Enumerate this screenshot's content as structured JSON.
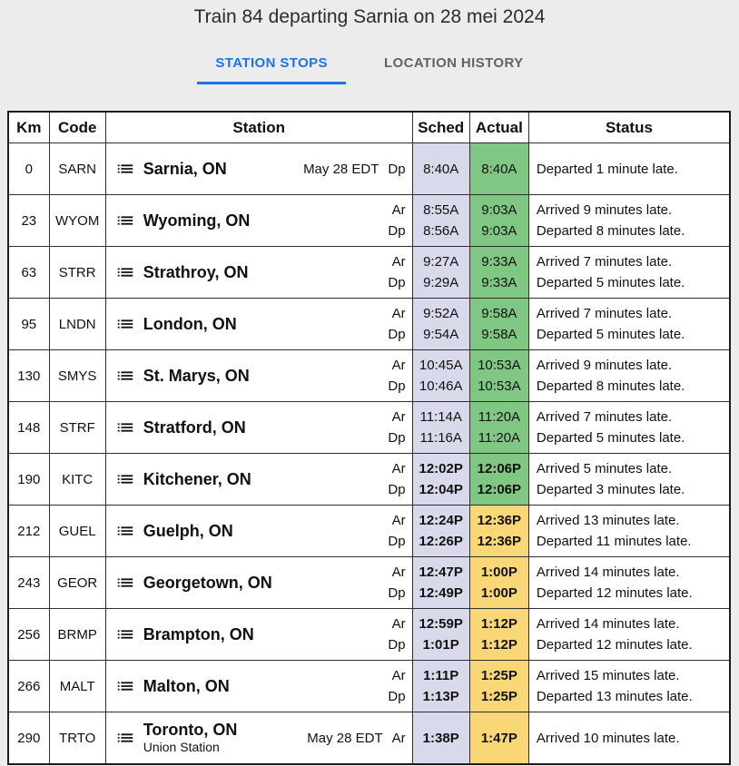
{
  "header": {
    "title": "Train 84 departing Sarnia on 28 mei 2024",
    "tabs": [
      {
        "label": "STATION STOPS",
        "active": true
      },
      {
        "label": "LOCATION HISTORY",
        "active": false
      }
    ]
  },
  "colors": {
    "accent": "#1a73e8",
    "inactive_tab": "#5f6368",
    "page_bg": "#ececec",
    "sched_bg": "#d9d9ec",
    "green": "#81c784",
    "yellow": "#f9d776"
  },
  "icons": {
    "station_menu": "list-icon"
  },
  "table": {
    "columns": [
      "Km",
      "Code",
      "Station",
      "Sched",
      "Actual",
      "Status"
    ],
    "rows": [
      {
        "km": "0",
        "code": "SARN",
        "station": "Sarnia, ON",
        "date_note": "May 28 EDT",
        "late": "green",
        "times": [
          {
            "label": "Dp",
            "sched": "8:40A",
            "actual": "8:40A"
          }
        ],
        "status": [
          "Departed 1 minute late."
        ]
      },
      {
        "km": "23",
        "code": "WYOM",
        "station": "Wyoming, ON",
        "late": "green",
        "times": [
          {
            "label": "Ar",
            "sched": "8:55A",
            "actual": "9:03A"
          },
          {
            "label": "Dp",
            "sched": "8:56A",
            "actual": "9:03A"
          }
        ],
        "status": [
          "Arrived 9 minutes late.",
          "Departed 8 minutes late."
        ]
      },
      {
        "km": "63",
        "code": "STRR",
        "station": "Strathroy, ON",
        "late": "green",
        "times": [
          {
            "label": "Ar",
            "sched": "9:27A",
            "actual": "9:33A"
          },
          {
            "label": "Dp",
            "sched": "9:29A",
            "actual": "9:33A"
          }
        ],
        "status": [
          "Arrived 7 minutes late.",
          "Departed 5 minutes late."
        ]
      },
      {
        "km": "95",
        "code": "LNDN",
        "station": "London, ON",
        "late": "green",
        "times": [
          {
            "label": "Ar",
            "sched": "9:52A",
            "actual": "9:58A"
          },
          {
            "label": "Dp",
            "sched": "9:54A",
            "actual": "9:58A"
          }
        ],
        "status": [
          "Arrived 7 minutes late.",
          "Departed 5 minutes late."
        ]
      },
      {
        "km": "130",
        "code": "SMYS",
        "station": "St. Marys, ON",
        "late": "green",
        "times": [
          {
            "label": "Ar",
            "sched": "10:45A",
            "actual": "10:53A"
          },
          {
            "label": "Dp",
            "sched": "10:46A",
            "actual": "10:53A"
          }
        ],
        "status": [
          "Arrived 9 minutes late.",
          "Departed 8 minutes late."
        ]
      },
      {
        "km": "148",
        "code": "STRF",
        "station": "Stratford, ON",
        "late": "green",
        "times": [
          {
            "label": "Ar",
            "sched": "11:14A",
            "actual": "11:20A"
          },
          {
            "label": "Dp",
            "sched": "11:16A",
            "actual": "11:20A"
          }
        ],
        "status": [
          "Arrived 7 minutes late.",
          "Departed 5 minutes late."
        ]
      },
      {
        "km": "190",
        "code": "KITC",
        "station": "Kitchener, ON",
        "late": "green",
        "times": [
          {
            "label": "Ar",
            "sched": "12:02P",
            "actual": "12:06P"
          },
          {
            "label": "Dp",
            "sched": "12:04P",
            "actual": "12:06P"
          }
        ],
        "status": [
          "Arrived 5 minutes late.",
          "Departed 3 minutes late."
        ]
      },
      {
        "km": "212",
        "code": "GUEL",
        "station": "Guelph, ON",
        "late": "yellow",
        "times": [
          {
            "label": "Ar",
            "sched": "12:24P",
            "actual": "12:36P"
          },
          {
            "label": "Dp",
            "sched": "12:26P",
            "actual": "12:36P"
          }
        ],
        "status": [
          "Arrived 13 minutes late.",
          "Departed 11 minutes late."
        ]
      },
      {
        "km": "243",
        "code": "GEOR",
        "station": "Georgetown, ON",
        "late": "yellow",
        "times": [
          {
            "label": "Ar",
            "sched": "12:47P",
            "actual": "1:00P"
          },
          {
            "label": "Dp",
            "sched": "12:49P",
            "actual": "1:00P"
          }
        ],
        "status": [
          "Arrived 14 minutes late.",
          "Departed 12 minutes late."
        ]
      },
      {
        "km": "256",
        "code": "BRMP",
        "station": "Brampton, ON",
        "late": "yellow",
        "times": [
          {
            "label": "Ar",
            "sched": "12:59P",
            "actual": "1:12P"
          },
          {
            "label": "Dp",
            "sched": "1:01P",
            "actual": "1:12P"
          }
        ],
        "status": [
          "Arrived 14 minutes late.",
          "Departed 12 minutes late."
        ]
      },
      {
        "km": "266",
        "code": "MALT",
        "station": "Malton, ON",
        "late": "yellow",
        "times": [
          {
            "label": "Ar",
            "sched": "1:11P",
            "actual": "1:25P"
          },
          {
            "label": "Dp",
            "sched": "1:13P",
            "actual": "1:25P"
          }
        ],
        "status": [
          "Arrived 15 minutes late.",
          "Departed 13 minutes late."
        ]
      },
      {
        "km": "290",
        "code": "TRTO",
        "station": "Toronto, ON",
        "substation": "Union Station",
        "date_note": "May 28 EDT",
        "late": "yellow",
        "times": [
          {
            "label": "Ar",
            "sched": "1:38P",
            "actual": "1:47P"
          }
        ],
        "status": [
          "Arrived 10 minutes late."
        ]
      }
    ]
  }
}
